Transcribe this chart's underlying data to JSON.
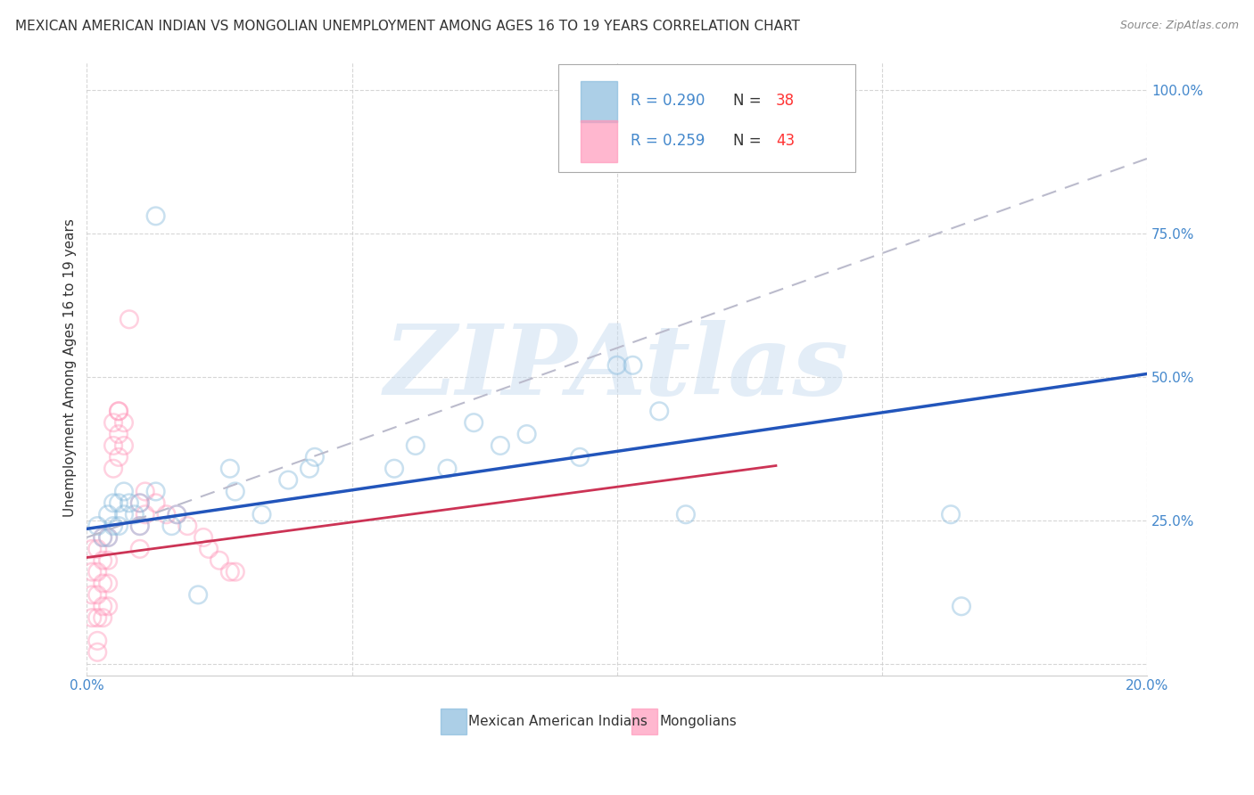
{
  "title": "MEXICAN AMERICAN INDIAN VS MONGOLIAN UNEMPLOYMENT AMONG AGES 16 TO 19 YEARS CORRELATION CHART",
  "source": "Source: ZipAtlas.com",
  "ylabel": "Unemployment Among Ages 16 to 19 years",
  "xlim": [
    0.0,
    0.2
  ],
  "ylim": [
    -0.02,
    1.05
  ],
  "xticks": [
    0.0,
    0.05,
    0.1,
    0.15,
    0.2
  ],
  "xticklabels": [
    "0.0%",
    "",
    "",
    "",
    "20.0%"
  ],
  "yticks": [
    0.0,
    0.25,
    0.5,
    0.75,
    1.0
  ],
  "yticklabels_right": [
    "",
    "25.0%",
    "50.0%",
    "75.0%",
    "100.0%"
  ],
  "legend_blue_r": "R = 0.290",
  "legend_blue_n": "38",
  "legend_pink_r": "R = 0.259",
  "legend_pink_n": "43",
  "legend_blue_label": "Mexican American Indians",
  "legend_pink_label": "Mongolians",
  "blue_color": "#89BBDD",
  "pink_color": "#FF99BB",
  "blue_line_color": "#2255BB",
  "pink_line_color": "#CC3355",
  "dashed_line_color": "#BBBBCC",
  "watermark": "ZIPAtlas",
  "watermark_color": "#C8DCF0",
  "r_n_color": "#4488CC",
  "n_number_color": "#FF3333",
  "blue_dots": [
    [
      0.002,
      0.24
    ],
    [
      0.003,
      0.22
    ],
    [
      0.004,
      0.26
    ],
    [
      0.004,
      0.22
    ],
    [
      0.005,
      0.28
    ],
    [
      0.005,
      0.24
    ],
    [
      0.006,
      0.28
    ],
    [
      0.006,
      0.24
    ],
    [
      0.007,
      0.3
    ],
    [
      0.007,
      0.26
    ],
    [
      0.008,
      0.28
    ],
    [
      0.009,
      0.26
    ],
    [
      0.01,
      0.28
    ],
    [
      0.01,
      0.24
    ],
    [
      0.013,
      0.78
    ],
    [
      0.013,
      0.3
    ],
    [
      0.016,
      0.24
    ],
    [
      0.017,
      0.26
    ],
    [
      0.021,
      0.12
    ],
    [
      0.027,
      0.34
    ],
    [
      0.028,
      0.3
    ],
    [
      0.033,
      0.26
    ],
    [
      0.038,
      0.32
    ],
    [
      0.042,
      0.34
    ],
    [
      0.043,
      0.36
    ],
    [
      0.058,
      0.34
    ],
    [
      0.062,
      0.38
    ],
    [
      0.068,
      0.34
    ],
    [
      0.073,
      0.42
    ],
    [
      0.078,
      0.38
    ],
    [
      0.083,
      0.4
    ],
    [
      0.093,
      0.36
    ],
    [
      0.103,
      0.52
    ],
    [
      0.108,
      0.44
    ],
    [
      0.113,
      0.26
    ],
    [
      0.163,
      0.26
    ],
    [
      0.165,
      0.1
    ],
    [
      0.1,
      0.52
    ]
  ],
  "pink_dots": [
    [
      0.001,
      0.2
    ],
    [
      0.001,
      0.16
    ],
    [
      0.001,
      0.12
    ],
    [
      0.001,
      0.08
    ],
    [
      0.002,
      0.2
    ],
    [
      0.002,
      0.16
    ],
    [
      0.002,
      0.12
    ],
    [
      0.002,
      0.08
    ],
    [
      0.002,
      0.04
    ],
    [
      0.002,
      0.02
    ],
    [
      0.003,
      0.22
    ],
    [
      0.003,
      0.18
    ],
    [
      0.003,
      0.14
    ],
    [
      0.003,
      0.1
    ],
    [
      0.003,
      0.08
    ],
    [
      0.004,
      0.22
    ],
    [
      0.004,
      0.18
    ],
    [
      0.004,
      0.14
    ],
    [
      0.004,
      0.1
    ],
    [
      0.005,
      0.42
    ],
    [
      0.005,
      0.38
    ],
    [
      0.005,
      0.34
    ],
    [
      0.006,
      0.44
    ],
    [
      0.006,
      0.4
    ],
    [
      0.006,
      0.36
    ],
    [
      0.007,
      0.42
    ],
    [
      0.007,
      0.38
    ],
    [
      0.008,
      0.6
    ],
    [
      0.01,
      0.28
    ],
    [
      0.01,
      0.24
    ],
    [
      0.01,
      0.2
    ],
    [
      0.011,
      0.3
    ],
    [
      0.011,
      0.26
    ],
    [
      0.013,
      0.28
    ],
    [
      0.015,
      0.26
    ],
    [
      0.017,
      0.26
    ],
    [
      0.019,
      0.24
    ],
    [
      0.022,
      0.22
    ],
    [
      0.023,
      0.2
    ],
    [
      0.025,
      0.18
    ],
    [
      0.027,
      0.16
    ],
    [
      0.028,
      0.16
    ],
    [
      0.006,
      0.44
    ]
  ],
  "blue_trend_x": [
    0.0,
    0.2
  ],
  "blue_trend_y": [
    0.235,
    0.505
  ],
  "pink_trend_x": [
    0.0,
    0.13
  ],
  "pink_trend_y": [
    0.185,
    0.345
  ],
  "dashed_trend_x": [
    0.0,
    0.2
  ],
  "dashed_trend_y": [
    0.22,
    0.88
  ],
  "title_fontsize": 11,
  "axis_label_fontsize": 11,
  "tick_fontsize": 11,
  "dot_size": 200,
  "dot_alpha": 0.45,
  "dot_linewidth": 1.8
}
